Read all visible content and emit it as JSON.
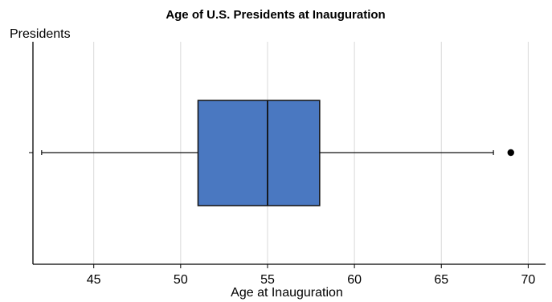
{
  "chart_data": {
    "type": "boxplot",
    "title": "Age of U.S. Presidents at Inauguration",
    "xlabel": "Age at Inauguration",
    "ylabel": "Presidents",
    "xlim": [
      41.5,
      71
    ],
    "x_ticks": [
      45,
      50,
      55,
      60,
      65,
      70
    ],
    "grid": true,
    "series": [
      {
        "min": 42,
        "q1": 51,
        "median": 55,
        "q3": 58,
        "max": 68,
        "outliers": [
          69
        ]
      }
    ],
    "colors": {
      "box_fill": "#4a78c1",
      "box_stroke": "#111111",
      "grid": "#d9d9d9",
      "axis": "#000000",
      "outlier": "#000000"
    }
  }
}
